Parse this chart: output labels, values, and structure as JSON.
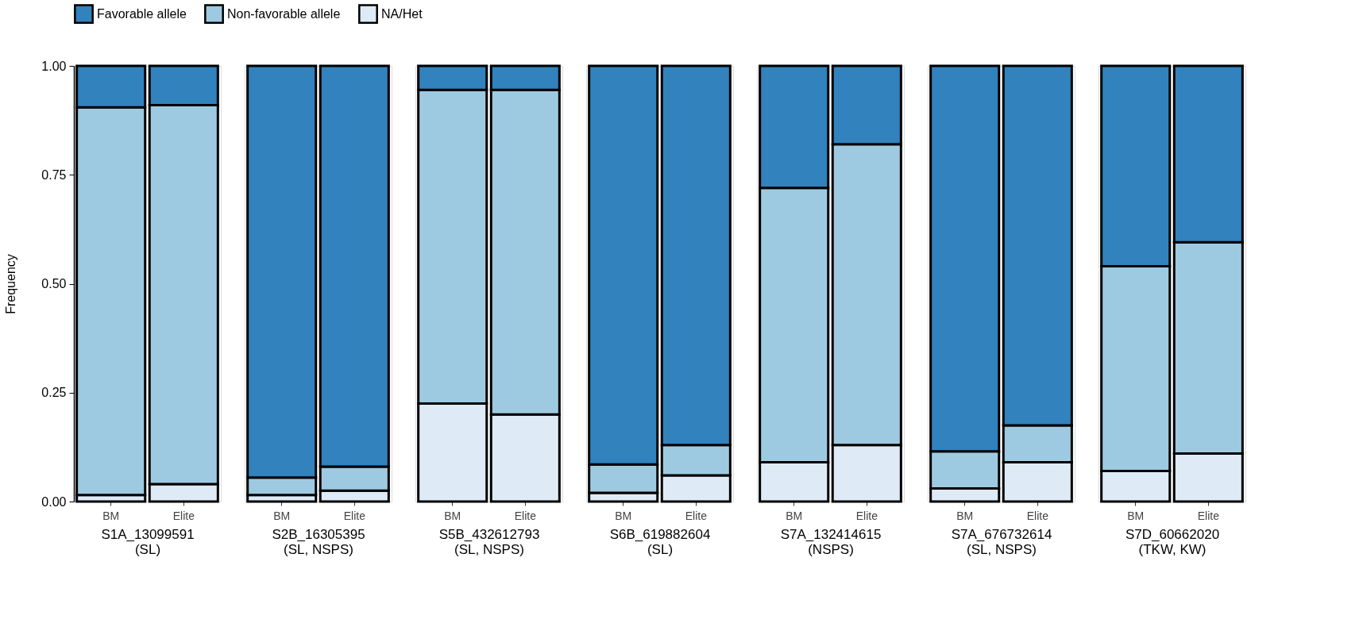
{
  "chart_data": [
    {
      "type": "bar",
      "stacked": true,
      "categories": [
        "BM",
        "Elite"
      ],
      "xlabel": "S1A_13099591\n(SL)",
      "ylabel": "Frequency",
      "ylim": [
        0,
        1
      ],
      "yticks": [
        {
          "value": 0,
          "label": "0.00"
        },
        0.25,
        {
          "value": 0.5,
          "label": "0.50"
        },
        0.75,
        {
          "value": 1,
          "label": "1.00"
        }
      ],
      "legend": "top",
      "grid": false,
      "series": [
        {
          "name": "NA/Het",
          "color": "#deebf7",
          "values": [
            0.015,
            0.04
          ]
        },
        {
          "name": "Non-favorable allele",
          "color": "#9ecae1",
          "values": [
            0.89,
            0.87
          ]
        },
        {
          "name": "Favorable allele",
          "color": "#3182bd",
          "values": [
            0.095,
            0.09
          ]
        }
      ]
    },
    {
      "type": "bar",
      "stacked": true,
      "categories": [
        "BM",
        "Elite"
      ],
      "xlabel": "S2B_16305395\n(SL, NSPS)",
      "ylim": [
        0,
        1
      ],
      "tick_labels": "x",
      "series": [
        {
          "name": "NA/Het",
          "color": "#deebf7",
          "values": [
            0.015,
            0.025
          ]
        },
        {
          "name": "Non-favorable allele",
          "color": "#9ecae1",
          "values": [
            0.04,
            0.055
          ]
        },
        {
          "name": "Favorable allele",
          "color": "#3182bd",
          "values": [
            0.945,
            0.92
          ]
        }
      ]
    },
    {
      "type": "bar",
      "stacked": true,
      "categories": [
        "BM",
        "Elite"
      ],
      "xlabel": "S5B_432612793\n(SL, NSPS)",
      "ylim": [
        0,
        1
      ],
      "tick_labels": "x",
      "series": [
        {
          "name": "NA/Het",
          "color": "#deebf7",
          "values": [
            0.225,
            0.2
          ]
        },
        {
          "name": "Non-favorable allele",
          "color": "#9ecae1",
          "values": [
            0.72,
            0.745
          ]
        },
        {
          "name": "Favorable allele",
          "color": "#3182bd",
          "values": [
            0.055,
            0.055
          ]
        }
      ]
    },
    {
      "type": "bar",
      "stacked": true,
      "categories": [
        "BM",
        "Elite"
      ],
      "xlabel": "S6B_619882604\n(SL)",
      "ylim": [
        0,
        1
      ],
      "tick_labels": "x",
      "series": [
        {
          "name": "NA/Het",
          "color": "#deebf7",
          "values": [
            0.02,
            0.06
          ]
        },
        {
          "name": "Non-favorable allele",
          "color": "#9ecae1",
          "values": [
            0.065,
            0.07
          ]
        },
        {
          "name": "Favorable allele",
          "color": "#3182bd",
          "values": [
            0.915,
            0.87
          ]
        }
      ]
    },
    {
      "type": "bar",
      "stacked": true,
      "categories": [
        "BM",
        "Elite"
      ],
      "xlabel": "S7A_132414615\n(NSPS)",
      "ylim": [
        0,
        1
      ],
      "tick_labels": "x",
      "series": [
        {
          "name": "NA/Het",
          "color": "#deebf7",
          "values": [
            0.09,
            0.13
          ]
        },
        {
          "name": "Non-favorable allele",
          "color": "#9ecae1",
          "values": [
            0.63,
            0.69
          ]
        },
        {
          "name": "Favorable allele",
          "color": "#3182bd",
          "values": [
            0.28,
            0.18
          ]
        }
      ]
    },
    {
      "type": "bar",
      "stacked": true,
      "categories": [
        "BM",
        "Elite"
      ],
      "xlabel": "S7A_676732614\n(SL, NSPS)",
      "ylim": [
        0,
        1
      ],
      "tick_labels": "x",
      "series": [
        {
          "name": "NA/Het",
          "color": "#deebf7",
          "values": [
            0.03,
            0.09
          ]
        },
        {
          "name": "Non-favorable allele",
          "color": "#9ecae1",
          "values": [
            0.085,
            0.085
          ]
        },
        {
          "name": "Favorable allele",
          "color": "#3182bd",
          "values": [
            0.885,
            0.825
          ]
        }
      ]
    },
    {
      "type": "bar",
      "stacked": true,
      "categories": [
        "BM",
        "Elite"
      ],
      "xlabel": "S7D_60662020\n(TKW, KW)",
      "ylim": [
        0,
        1
      ],
      "tick_labels": "x",
      "series": [
        {
          "name": "NA/Het",
          "color": "#deebf7",
          "values": [
            0.07,
            0.11
          ]
        },
        {
          "name": "Non-favorable allele",
          "color": "#9ecae1",
          "values": [
            0.47,
            0.485
          ]
        },
        {
          "name": "Favorable allele",
          "color": "#3182bd",
          "values": [
            0.46,
            0.405
          ]
        }
      ]
    }
  ]
}
